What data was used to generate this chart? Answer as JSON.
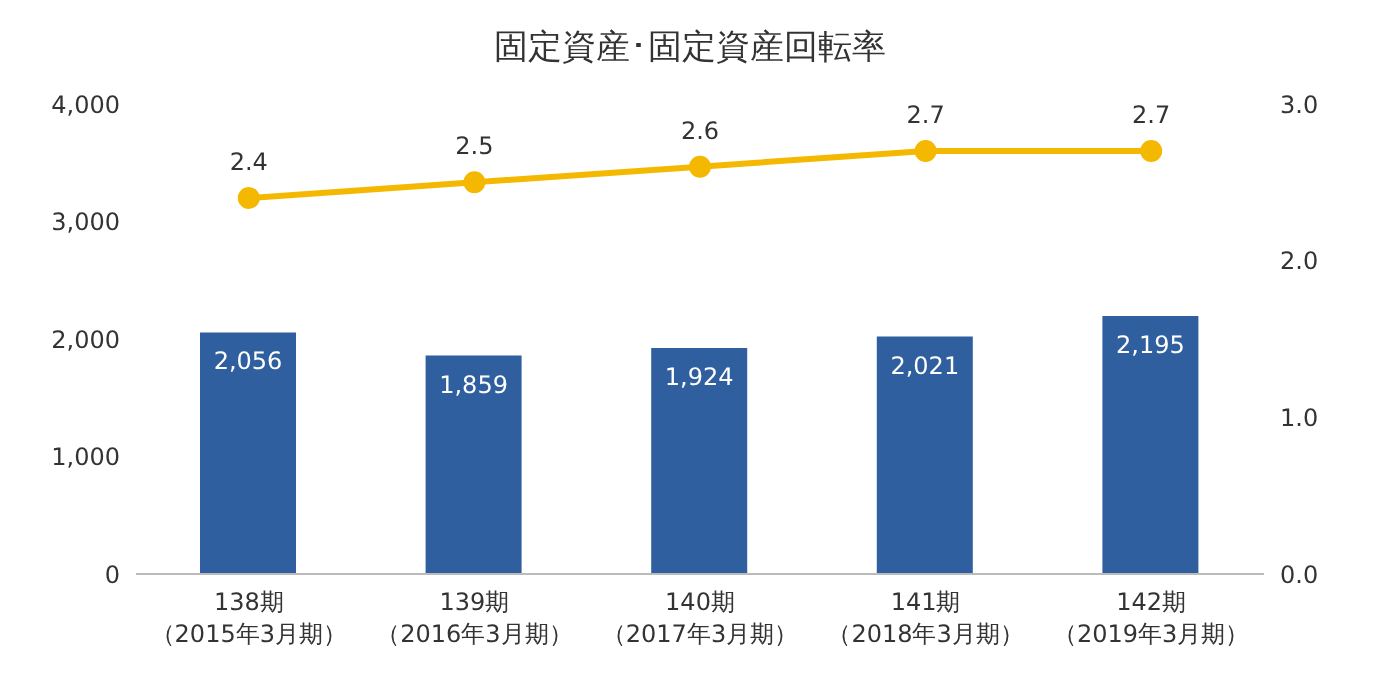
{
  "chart_data": {
    "type": "bar",
    "title": "固定資産･固定資産回転率",
    "categories": [
      "138期（2015年3月期）",
      "139期（2016年3月期）",
      "140期（2017年3月期）",
      "141期（2018年3月期）",
      "142期（2019年3月期）"
    ],
    "series": [
      {
        "color": "#2f5f9e",
        "values": [
          2056,
          1859,
          1924,
          2021,
          2195
        ],
        "value_labels": [
          "2,056",
          "1,859",
          "1,924",
          "2,021",
          "2,195"
        ]
      },
      {
        "type": "line",
        "axis": "y2",
        "color": "#f5b800",
        "values": [
          2.4,
          2.5,
          2.6,
          2.7,
          2.7
        ],
        "value_labels": [
          "2.4",
          "2.5",
          "2.6",
          "2.7",
          "2.7"
        ],
        "marker": "circle"
      }
    ],
    "ylim": [
      0,
      4000
    ],
    "yticks": [
      {
        "value": 0,
        "label": "0"
      },
      {
        "value": 1000,
        "label": "1,000"
      },
      {
        "value": 2000,
        "label": "2,000"
      },
      {
        "value": 3000,
        "label": "3,000"
      },
      {
        "value": 4000,
        "label": "4,000"
      }
    ],
    "y2lim": [
      0,
      3
    ],
    "y2ticks": [
      {
        "value": 0,
        "label": "0.0"
      },
      {
        "value": 1,
        "label": "1.0"
      },
      {
        "value": 2,
        "label": "2.0"
      },
      {
        "value": 3,
        "label": "3.0"
      }
    ],
    "legend": false
  }
}
